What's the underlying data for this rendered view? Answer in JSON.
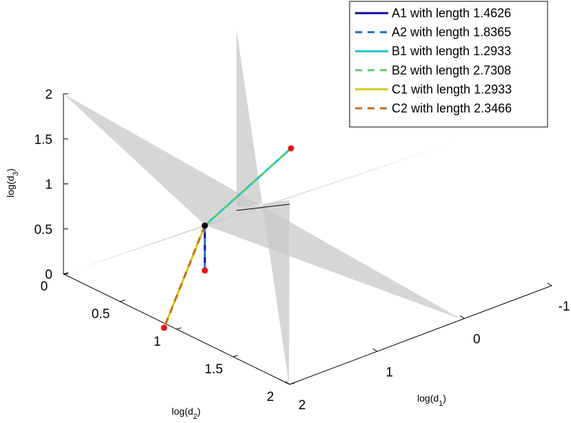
{
  "chart_data": {
    "type": "line3d",
    "xlabel": "log(d_1)",
    "ylabel": "log(d_2)",
    "zlabel": "log(d_3)",
    "xlim": [
      -1,
      2
    ],
    "ylim": [
      0,
      2
    ],
    "zlim": [
      0,
      2
    ],
    "x_ticks": [
      "-1",
      "0",
      "1",
      "2"
    ],
    "y_ticks": [
      "0",
      "0.5",
      "1",
      "1.5",
      "2"
    ],
    "z_ticks": [
      "0",
      "0.5",
      "1",
      "1.5",
      "2"
    ],
    "grid": false,
    "legend_position": "top-right",
    "origin_point": [
      0,
      0,
      0.5
    ],
    "series": [
      {
        "name": "A1 with length 1.4626",
        "color": "#0a0aa8",
        "dash": false,
        "points": [
          [
            0,
            0,
            0.5
          ],
          [
            0,
            0,
            0
          ]
        ]
      },
      {
        "name": "A2 with length 1.8365",
        "color": "#1f6fd0",
        "dash": true,
        "points": [
          [
            0,
            0,
            0.5
          ],
          [
            0,
            0,
            0
          ]
        ]
      },
      {
        "name": "B1 with length 1.2933",
        "color": "#22c4c8",
        "dash": false,
        "points": [
          [
            0,
            0,
            0.5
          ],
          [
            1,
            0,
            1.5
          ]
        ]
      },
      {
        "name": "B2 with length 2.7308",
        "color": "#5fcf6a",
        "dash": true,
        "points": [
          [
            0,
            0,
            0.5
          ],
          [
            1,
            0,
            1.5
          ]
        ]
      },
      {
        "name": "C1 with length 1.2933",
        "color": "#d3cc13",
        "dash": false,
        "points": [
          [
            0,
            0,
            0.5
          ],
          [
            0,
            1,
            0
          ]
        ]
      },
      {
        "name": "C2 with length 2.3466",
        "color": "#c96a12",
        "dash": true,
        "points": [
          [
            0,
            0,
            0.5
          ],
          [
            0,
            1,
            0
          ]
        ]
      }
    ],
    "endpoints": [
      [
        0,
        0,
        0
      ],
      [
        1,
        0,
        1.5
      ],
      [
        0,
        1,
        0
      ]
    ],
    "planes_color": "#c8c8c8"
  }
}
